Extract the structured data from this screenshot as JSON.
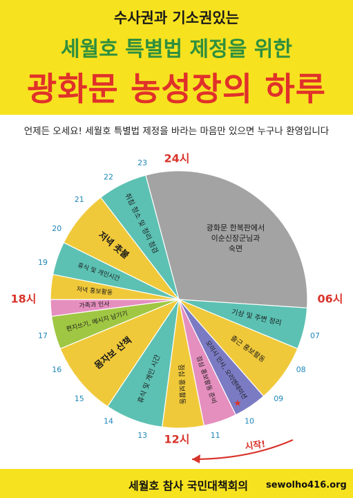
{
  "title": {
    "line1": "수사권과 기소권있는",
    "line2": "세월호 특별법 제정을 위한",
    "line3": "광화문 농성장의 하루"
  },
  "subtitle": "언제든 오세요! 세월호 특별법 제정을 바라는 마음만 있으면 누구나 환영입니다",
  "clock": {
    "label_24": "24시",
    "label_06": "06시",
    "label_12": "12시",
    "label_18": "18시",
    "hours": [
      "23",
      "22",
      "21",
      "20",
      "19",
      "18",
      "17",
      "16",
      "15",
      "14",
      "13",
      "12",
      "11",
      "10",
      "09",
      "08",
      "07"
    ],
    "start_label": "시작!"
  },
  "schedule": [
    {
      "name": "sleep",
      "start": 23,
      "end": 6.25,
      "color": "#a3a3a3",
      "label": "광화문 한복판에서 이순신장군님과 숙면",
      "lines": [
        "광화문 한복판에서",
        "이순신장군님과",
        "숙면"
      ]
    },
    {
      "name": "wakeup",
      "start": 6.25,
      "end": 7.5,
      "color": "#5cc1b3",
      "label": "기상 및 주변 정리",
      "lines": [
        "기상 및 주변 정리"
      ]
    },
    {
      "name": "morning-campaign",
      "start": 7.5,
      "end": 9.25,
      "color": "#f0c93a",
      "label": "출근 홍보활동",
      "lines": [
        "출근 홍보활동"
      ]
    },
    {
      "name": "daily-meeting",
      "start": 9.25,
      "end": 10.25,
      "color": "#7b7bc4",
      "label": "모이시 인사, 오리엔테이션",
      "lines": [
        "모이시 인사, 오리엔테이션"
      ]
    },
    {
      "name": "lunch-campaign-prep",
      "start": 10.25,
      "end": 11.25,
      "color": "#e58fbf",
      "label": "점심 홍보활동 준비",
      "lines": [
        "점심 홍보활동 준비"
      ]
    },
    {
      "name": "lunch-campaign",
      "start": 11.25,
      "end": 12.5,
      "color": "#f0c93a",
      "label": "점심 홍보활동",
      "lines": [
        "점심 홍보활동"
      ]
    },
    {
      "name": "rest-1",
      "start": 12.5,
      "end": 14.25,
      "color": "#5cc1b3",
      "label": "휴식 및 개인 시간",
      "lines": [
        "휴식 및 개인 시간"
      ]
    },
    {
      "name": "sign-campaign",
      "start": 14.25,
      "end": 16.5,
      "color": "#f0c93a",
      "label": "몸자보 산책",
      "lines": [
        "몸자보 산책"
      ]
    },
    {
      "name": "letters",
      "start": 16.5,
      "end": 17.5,
      "color": "#a0c743",
      "label": "편지쓰기, 메시지 남기기",
      "lines": [
        "편지쓰기, 메시지 남기기"
      ]
    },
    {
      "name": "family-greeting",
      "start": 17.5,
      "end": 18,
      "color": "#e58fbf",
      "label": "가족과 인사",
      "lines": [
        "가족과 인사"
      ]
    },
    {
      "name": "evening-campaign",
      "start": 18,
      "end": 18.75,
      "color": "#f0c93a",
      "label": "저녁 홍보활동",
      "lines": [
        "저녁 홍보활동"
      ]
    },
    {
      "name": "rest-2",
      "start": 18.75,
      "end": 19.75,
      "color": "#5cc1b3",
      "label": "휴식 및 개인시간",
      "lines": [
        "휴식 및 개인시간"
      ]
    },
    {
      "name": "candlelight",
      "start": 19.75,
      "end": 21.5,
      "color": "#f0c93a",
      "label": "저녁 촛불",
      "lines": [
        "저녁 촛불"
      ]
    },
    {
      "name": "night-cleanup",
      "start": 21.5,
      "end": 23,
      "color": "#5cc1b3",
      "label": "취침 청소 및 정리 점검",
      "lines": [
        "취침 청소 및 정리 점검"
      ]
    }
  ],
  "footer": {
    "org": "세월호 참사 국민대책회의",
    "website": "sewolho416.org"
  },
  "colors": {
    "header_bg": "#f7e21f",
    "title_green": "#2f8f3e",
    "title_red": "#e0312a",
    "hour_blue": "#1d86b8",
    "accent_red": "#d8342b"
  }
}
